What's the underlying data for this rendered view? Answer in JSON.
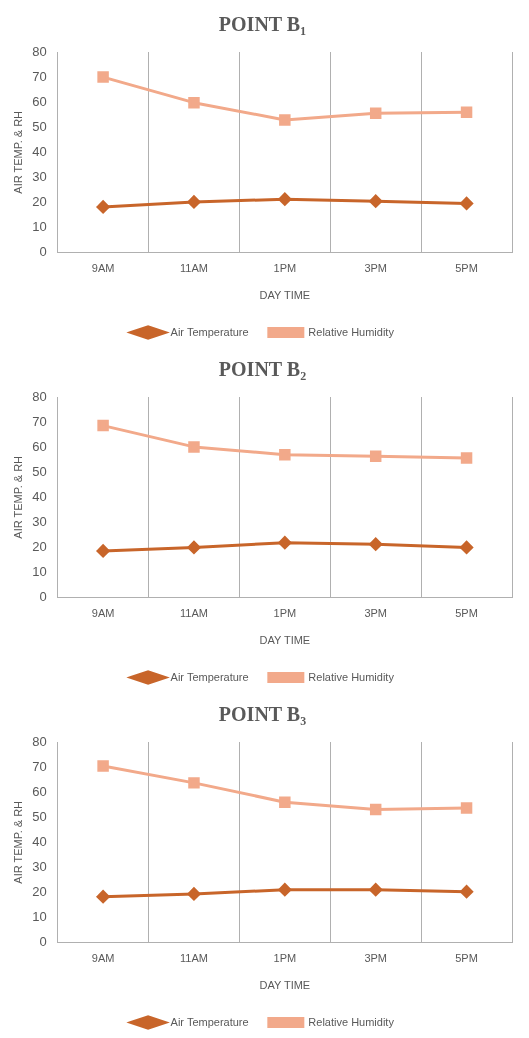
{
  "chart_data": [
    {
      "type": "line",
      "title": "POINT B₁",
      "xlabel": "DAY TIME",
      "ylabel": "AIR TEMP. & RH",
      "categories": [
        "9AM",
        "11AM",
        "1PM",
        "3PM",
        "5PM"
      ],
      "ylim": [
        0,
        80
      ],
      "yticks": [
        0,
        10,
        20,
        30,
        40,
        50,
        60,
        70,
        80
      ],
      "grid": "x",
      "legend": "bottom",
      "series": [
        {
          "name": "Air Temperature",
          "color": "#c8652a",
          "marker": "diamond",
          "values": [
            18.2,
            20.2,
            21.3,
            20.5,
            19.6
          ]
        },
        {
          "name": "Relative Humidity",
          "color": "#f2a98a",
          "marker": "square",
          "values": [
            70,
            59.8,
            52.9,
            55.6,
            56
          ]
        }
      ]
    },
    {
      "type": "line",
      "title": "POINT B₂",
      "xlabel": "DAY TIME",
      "ylabel": "AIR TEMP. & RH",
      "categories": [
        "9AM",
        "11AM",
        "1PM",
        "3PM",
        "5PM"
      ],
      "ylim": [
        0,
        80
      ],
      "yticks": [
        0,
        10,
        20,
        30,
        40,
        50,
        60,
        70,
        80
      ],
      "grid": "x",
      "legend": "bottom",
      "series": [
        {
          "name": "Air Temperature",
          "color": "#c8652a",
          "marker": "diamond",
          "values": [
            18.6,
            20,
            21.9,
            21.3,
            20
          ]
        },
        {
          "name": "Relative Humidity",
          "color": "#f2a98a",
          "marker": "square",
          "values": [
            68.6,
            60.1,
            57,
            56.4,
            55.7
          ]
        }
      ]
    },
    {
      "type": "line",
      "title": "POINT B₃",
      "xlabel": "DAY TIME",
      "ylabel": "AIR TEMP. & RH",
      "categories": [
        "9AM",
        "11AM",
        "1PM",
        "3PM",
        "5PM"
      ],
      "ylim": [
        0,
        80
      ],
      "yticks": [
        0,
        10,
        20,
        30,
        40,
        50,
        60,
        70,
        80
      ],
      "grid": "x",
      "legend": "bottom",
      "series": [
        {
          "name": "Air Temperature",
          "color": "#c8652a",
          "marker": "diamond",
          "values": [
            18.3,
            19.4,
            21.1,
            21.1,
            20.3
          ]
        },
        {
          "name": "Relative Humidity",
          "color": "#f2a98a",
          "marker": "square",
          "values": [
            70.4,
            63.7,
            56,
            53.1,
            53.7
          ]
        }
      ]
    }
  ]
}
